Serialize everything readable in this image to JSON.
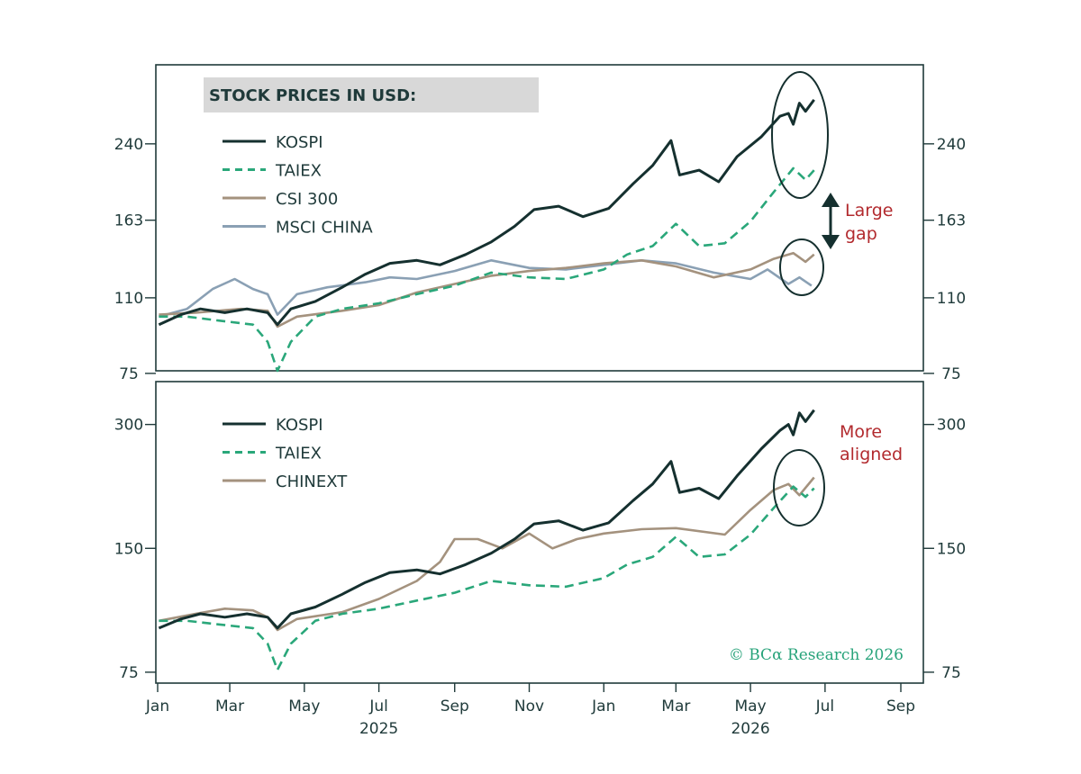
{
  "colors": {
    "frame": "#1f3a3a",
    "KOSPI": "#15302f",
    "TAIEX": "#2aa77a",
    "CSI 300": "#a4927e",
    "MSCI CHINA": "#8aa0b4",
    "CHINEXT": "#a4927e",
    "annotation": "#b22a2e",
    "copyright": "#27a37a",
    "title_bg": "#d8d8d8"
  },
  "x_axis": {
    "ticks": [
      "Jan",
      "Mar",
      "May",
      "Jul",
      "Sep",
      "Nov",
      "Jan",
      "Mar",
      "May",
      "Jul",
      "Sep"
    ],
    "tick_dates": [
      "2025-01-01",
      "2025-03-01",
      "2025-05-01",
      "2025-07-01",
      "2025-09-01",
      "2025-11-01",
      "2026-01-01",
      "2026-03-01",
      "2026-05-01",
      "2026-07-01",
      "2026-09-01"
    ],
    "year_labels": [
      {
        "date": "2025-07-01",
        "text": "2025"
      },
      {
        "date": "2026-05-01",
        "text": "2026"
      }
    ],
    "range": [
      "2025-01-01",
      "2026-09-01"
    ]
  },
  "chart_data": [
    {
      "type": "line",
      "title": "STOCK PRICES IN USD:",
      "y_scale": "log",
      "ylim": [
        70,
        330
      ],
      "y_ticks": [
        75,
        110,
        163,
        240
      ],
      "y_tick_labels": [
        "75",
        "110",
        "163",
        "240"
      ],
      "legend_position": "top-left",
      "series": [
        {
          "name": "KOSPI",
          "style": "solid",
          "x": [
            "2025-01-02",
            "2025-01-20",
            "2025-02-05",
            "2025-02-25",
            "2025-03-15",
            "2025-04-01",
            "2025-04-09",
            "2025-04-20",
            "2025-05-10",
            "2025-06-01",
            "2025-06-20",
            "2025-07-10",
            "2025-08-01",
            "2025-08-20",
            "2025-09-10",
            "2025-10-01",
            "2025-10-20",
            "2025-11-05",
            "2025-11-25",
            "2025-12-15",
            "2026-01-05",
            "2026-01-25",
            "2026-02-10",
            "2026-02-25",
            "2026-03-04",
            "2026-03-20",
            "2026-04-05",
            "2026-04-20",
            "2026-05-10",
            "2026-05-25",
            "2026-06-01",
            "2026-06-05",
            "2026-06-10",
            "2026-06-15",
            "2026-06-22"
          ],
          "y": [
            96,
            101,
            104,
            102,
            104,
            102,
            96,
            104,
            108,
            116,
            124,
            131,
            133,
            130,
            137,
            146,
            158,
            172,
            175,
            166,
            173,
            196,
            215,
            244,
            205,
            210,
            198,
            225,
            249,
            276,
            280,
            265,
            295,
            283,
            300
          ]
        },
        {
          "name": "TAIEX",
          "style": "dashed",
          "x": [
            "2025-01-02",
            "2025-01-25",
            "2025-02-20",
            "2025-03-20",
            "2025-04-01",
            "2025-04-09",
            "2025-04-20",
            "2025-05-10",
            "2025-06-01",
            "2025-07-01",
            "2025-08-01",
            "2025-09-01",
            "2025-10-01",
            "2025-11-01",
            "2025-12-01",
            "2026-01-01",
            "2026-01-20",
            "2026-02-10",
            "2026-03-01",
            "2026-03-20",
            "2026-04-10",
            "2026-05-01",
            "2026-05-20",
            "2026-06-05",
            "2026-06-15",
            "2026-06-22"
          ],
          "y": [
            100,
            100,
            98,
            96,
            88,
            76,
            88,
            100,
            104,
            107,
            112,
            117,
            125,
            122,
            121,
            127,
            137,
            143,
            160,
            143,
            145,
            162,
            188,
            212,
            200,
            210
          ]
        },
        {
          "name": "CSI 300",
          "style": "solid",
          "x": [
            "2025-01-02",
            "2025-02-01",
            "2025-03-10",
            "2025-04-01",
            "2025-04-09",
            "2025-04-25",
            "2025-06-01",
            "2025-07-01",
            "2025-08-01",
            "2025-09-01",
            "2025-10-01",
            "2025-11-01",
            "2025-12-01",
            "2026-01-01",
            "2026-02-01",
            "2026-03-01",
            "2026-04-01",
            "2026-05-01",
            "2026-05-20",
            "2026-06-05",
            "2026-06-15",
            "2026-06-22"
          ],
          "y": [
            101,
            102,
            104,
            103,
            95,
            100,
            103,
            106,
            113,
            118,
            123,
            126,
            128,
            131,
            133,
            129,
            122,
            127,
            134,
            138,
            132,
            137
          ]
        },
        {
          "name": "MSCI CHINA",
          "style": "solid",
          "x": [
            "2025-01-02",
            "2025-01-25",
            "2025-02-15",
            "2025-03-05",
            "2025-03-20",
            "2025-04-01",
            "2025-04-09",
            "2025-04-25",
            "2025-05-20",
            "2025-06-20",
            "2025-07-10",
            "2025-08-01",
            "2025-09-01",
            "2025-10-01",
            "2025-11-01",
            "2025-12-01",
            "2026-01-01",
            "2026-02-01",
            "2026-03-01",
            "2026-04-01",
            "2026-05-01",
            "2026-05-15",
            "2026-06-01",
            "2026-06-10",
            "2026-06-20"
          ],
          "y": [
            100,
            104,
            115,
            121,
            115,
            112,
            101,
            112,
            116,
            119,
            122,
            121,
            126,
            133,
            128,
            127,
            130,
            133,
            131,
            125,
            121,
            127,
            118,
            122,
            117
          ]
        }
      ],
      "annotation": {
        "text": [
          "Large",
          "gap"
        ],
        "arrow": "double-vertical"
      }
    },
    {
      "type": "line",
      "title": "",
      "y_scale": "log",
      "ylim": [
        72,
        370
      ],
      "y_ticks": [
        75,
        150,
        300
      ],
      "y_tick_labels": [
        "75",
        "150",
        "300"
      ],
      "legend_position": "top-left",
      "series": [
        {
          "name": "KOSPI",
          "style": "solid",
          "x": [
            "2025-01-02",
            "2025-01-20",
            "2025-02-05",
            "2025-02-25",
            "2025-03-15",
            "2025-04-01",
            "2025-04-09",
            "2025-04-20",
            "2025-05-10",
            "2025-06-01",
            "2025-06-20",
            "2025-07-10",
            "2025-08-01",
            "2025-08-20",
            "2025-09-10",
            "2025-10-01",
            "2025-10-20",
            "2025-11-05",
            "2025-11-25",
            "2025-12-15",
            "2026-01-05",
            "2026-01-25",
            "2026-02-10",
            "2026-02-25",
            "2026-03-04",
            "2026-03-20",
            "2026-04-05",
            "2026-04-20",
            "2026-05-10",
            "2026-05-25",
            "2026-06-01",
            "2026-06-05",
            "2026-06-10",
            "2026-06-15",
            "2026-06-22"
          ],
          "y": [
            96,
            101,
            104,
            102,
            104,
            102,
            96,
            104,
            108,
            116,
            124,
            131,
            133,
            130,
            137,
            146,
            158,
            172,
            175,
            166,
            173,
            196,
            215,
            244,
            205,
            210,
            198,
            225,
            262,
            290,
            300,
            283,
            320,
            305,
            325
          ]
        },
        {
          "name": "TAIEX",
          "style": "dashed",
          "x": [
            "2025-01-02",
            "2025-01-25",
            "2025-02-20",
            "2025-03-20",
            "2025-04-01",
            "2025-04-09",
            "2025-04-20",
            "2025-05-10",
            "2025-06-01",
            "2025-07-01",
            "2025-08-01",
            "2025-09-01",
            "2025-10-01",
            "2025-11-01",
            "2025-12-01",
            "2026-01-01",
            "2026-01-20",
            "2026-02-10",
            "2026-03-01",
            "2026-03-20",
            "2026-04-10",
            "2026-05-01",
            "2026-05-20",
            "2026-06-05",
            "2026-06-15",
            "2026-06-22"
          ],
          "y": [
            100,
            100,
            98,
            96,
            88,
            76,
            88,
            100,
            104,
            107,
            112,
            117,
            125,
            122,
            121,
            127,
            137,
            143,
            160,
            143,
            145,
            162,
            188,
            212,
            200,
            210
          ]
        },
        {
          "name": "CHINEXT",
          "style": "solid",
          "x": [
            "2025-01-02",
            "2025-02-01",
            "2025-02-25",
            "2025-03-20",
            "2025-04-01",
            "2025-04-09",
            "2025-04-25",
            "2025-06-01",
            "2025-07-01",
            "2025-08-01",
            "2025-08-20",
            "2025-09-01",
            "2025-09-20",
            "2025-10-10",
            "2025-11-01",
            "2025-11-20",
            "2025-12-10",
            "2026-01-01",
            "2026-02-01",
            "2026-03-01",
            "2026-04-10",
            "2026-05-01",
            "2026-05-20",
            "2026-06-01",
            "2026-06-10",
            "2026-06-22"
          ],
          "y": [
            100,
            104,
            107,
            106,
            102,
            95,
            101,
            105,
            113,
            125,
            139,
            158,
            158,
            150,
            163,
            150,
            158,
            163,
            167,
            168,
            162,
            186,
            208,
            215,
            202,
            223
          ]
        }
      ],
      "annotation": {
        "text": [
          "More",
          "aligned"
        ]
      }
    }
  ],
  "copyright": "© BCα Research 2026"
}
